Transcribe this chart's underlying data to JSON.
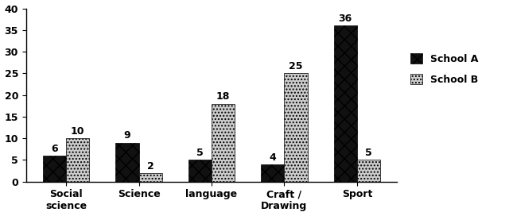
{
  "categories": [
    "Social\nscience",
    "Science",
    "language",
    "Craft /\nDrawing",
    "Sport"
  ],
  "school_a": [
    6,
    9,
    5,
    4,
    36
  ],
  "school_b": [
    10,
    2,
    18,
    25,
    5
  ],
  "school_a_label": "School A",
  "school_b_label": "School B",
  "ylim": [
    0,
    40
  ],
  "yticks": [
    0,
    5,
    10,
    15,
    20,
    25,
    30,
    35,
    40
  ],
  "bar_width": 0.32,
  "color_a": "#111111",
  "color_b": "#cccccc",
  "hatch_a": "xx",
  "hatch_b": "....",
  "tick_fontsize": 9,
  "legend_fontsize": 9,
  "value_fontsize": 9,
  "bg_color": "#ffffff"
}
